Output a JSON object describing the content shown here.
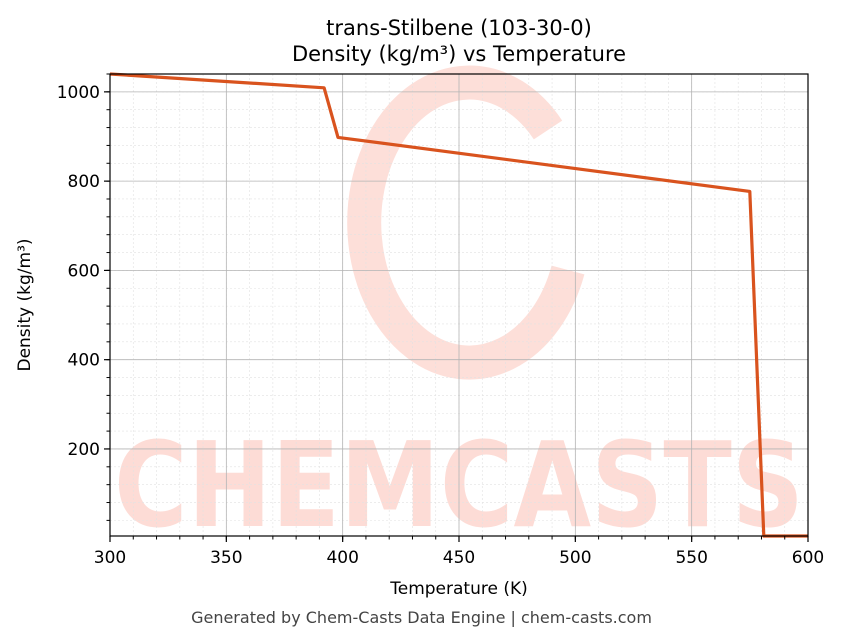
{
  "chart_data": {
    "type": "line",
    "title": "trans-Stilbene (103-30-0)",
    "subtitle": "Density (kg/m³) vs Temperature",
    "xlabel": "Temperature (K)",
    "ylabel": "Density (kg/m³)",
    "xlim": [
      300,
      600
    ],
    "ylim": [
      5,
      1040
    ],
    "xticks": [
      300,
      350,
      400,
      450,
      500,
      550,
      600
    ],
    "yticks": [
      200,
      400,
      600,
      800,
      1000
    ],
    "grid": true,
    "series": [
      {
        "color": "#d9531e",
        "x": [
          300,
          392,
          398,
          575,
          581,
          600
        ],
        "y": [
          1040,
          1009,
          898,
          777,
          5,
          5
        ]
      }
    ]
  },
  "watermark": {
    "text": "CHEMCASTS",
    "color": "#fdd9d2"
  },
  "footer": "Generated by Chem-Casts Data Engine | chem-casts.com"
}
